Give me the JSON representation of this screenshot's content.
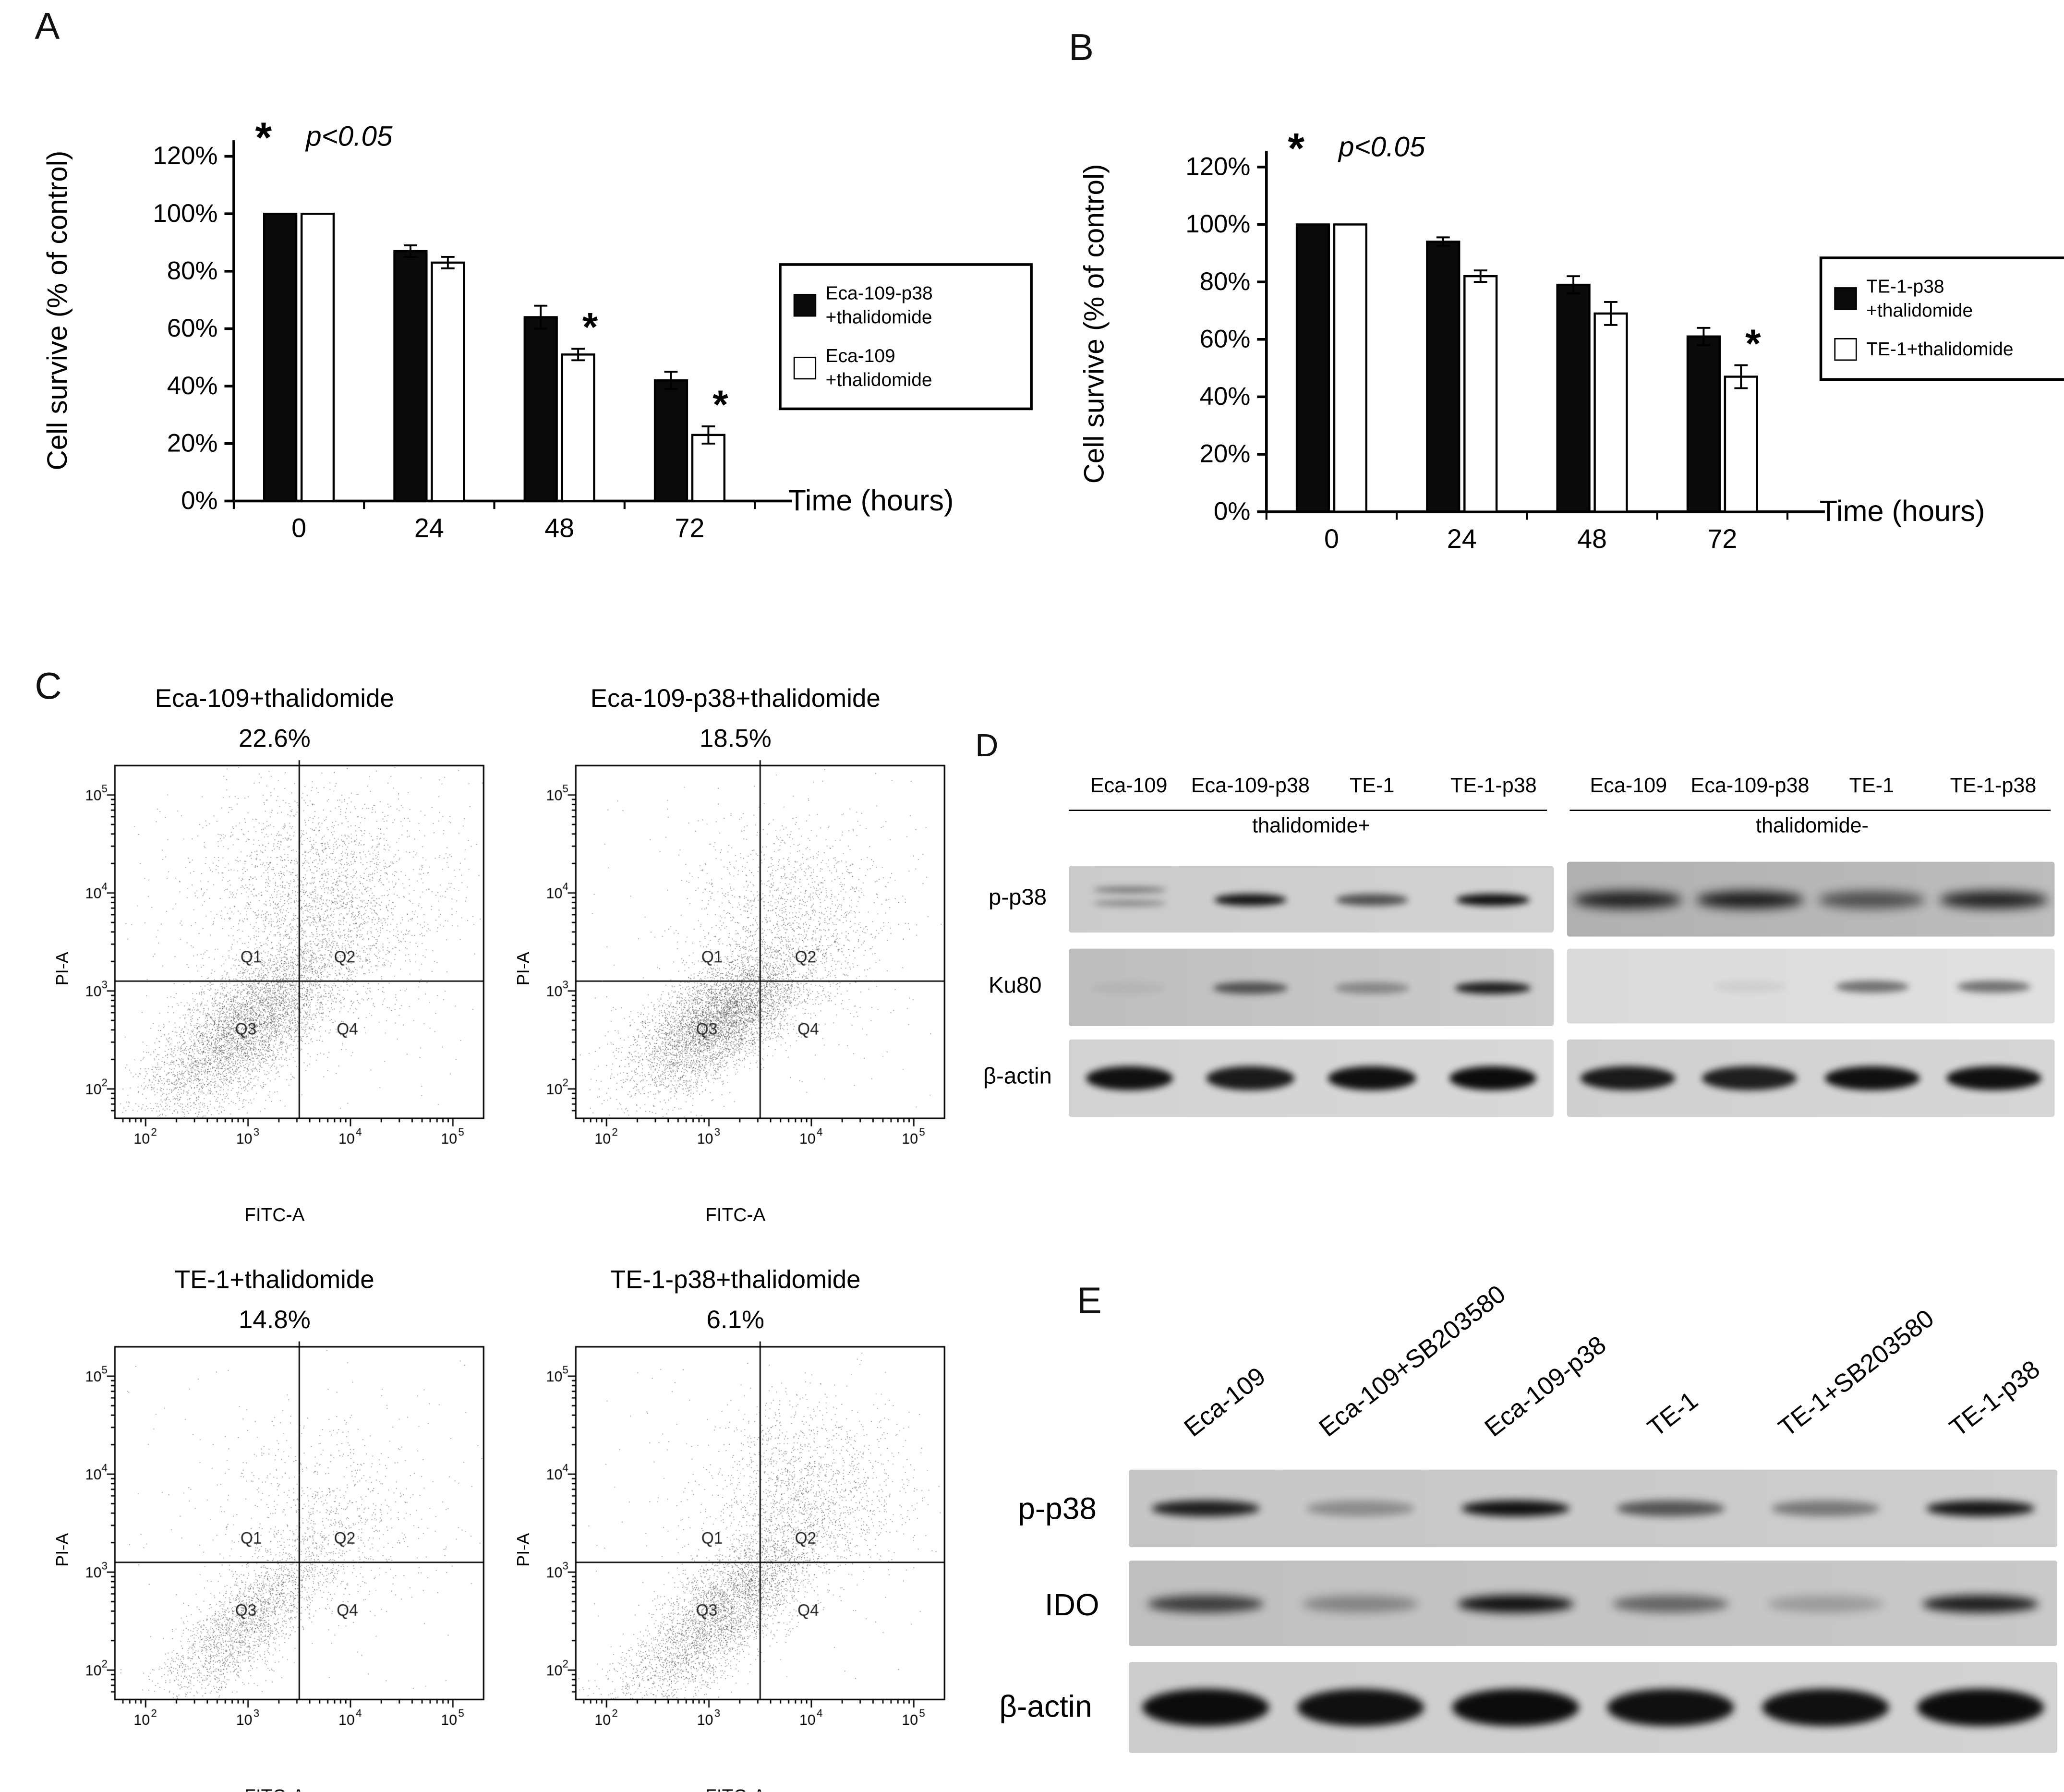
{
  "panels": {
    "a": "A",
    "b": "B",
    "c": "C",
    "d": "D",
    "e": "E"
  },
  "chart_data": [
    {
      "id": "A",
      "type": "bar",
      "title": "",
      "ylabel": "Cell survive (% of control)",
      "xlabel": "Time (hours)",
      "categories": [
        "0",
        "24",
        "48",
        "72"
      ],
      "yticks": [
        "0%",
        "20%",
        "40%",
        "60%",
        "80%",
        "100%",
        "120%"
      ],
      "ylim": [
        0,
        120
      ],
      "grid": false,
      "legend_position": "right",
      "sig_marker": "*",
      "sig_note": "p<0.05",
      "series": [
        {
          "name": "Eca-109-p38 +thalidomide",
          "lines": [
            "Eca-109-p38",
            "+thalidomide"
          ],
          "fill": "black",
          "values": [
            100,
            87,
            64,
            42
          ],
          "errors": [
            0,
            2,
            4,
            3
          ],
          "sig": [
            false,
            false,
            false,
            false
          ]
        },
        {
          "name": "Eca-109 +thalidomide",
          "lines": [
            "Eca-109",
            "+thalidomide"
          ],
          "fill": "white",
          "values": [
            100,
            83,
            51,
            23
          ],
          "errors": [
            0,
            2,
            2,
            3
          ],
          "sig": [
            false,
            false,
            true,
            true
          ]
        }
      ]
    },
    {
      "id": "B",
      "type": "bar",
      "title": "",
      "ylabel": "Cell survive (% of control)",
      "xlabel": "Time (hours)",
      "categories": [
        "0",
        "24",
        "48",
        "72"
      ],
      "yticks": [
        "0%",
        "20%",
        "40%",
        "60%",
        "80%",
        "100%",
        "120%"
      ],
      "ylim": [
        0,
        120
      ],
      "grid": false,
      "legend_position": "right",
      "sig_marker": "*",
      "sig_note": "p<0.05",
      "series": [
        {
          "name": "TE-1-p38 +thalidomide",
          "lines": [
            "TE-1-p38",
            "+thalidomide"
          ],
          "fill": "black",
          "values": [
            100,
            94,
            79,
            61
          ],
          "errors": [
            0,
            1.5,
            3,
            3
          ],
          "sig": [
            false,
            false,
            false,
            false
          ]
        },
        {
          "name": "TE-1+thalidomide",
          "lines": [
            "TE-1+thalidomide"
          ],
          "fill": "white",
          "values": [
            100,
            82,
            69,
            47
          ],
          "errors": [
            0,
            2,
            4,
            4
          ],
          "sig": [
            false,
            false,
            false,
            true
          ]
        }
      ]
    }
  ],
  "flow": {
    "xlabel": "FITC-A",
    "ylabel": "PI-A",
    "tick_base": "10",
    "tick_exponents": [
      "2",
      "3",
      "4",
      "5"
    ],
    "quadrants": [
      "Q1",
      "Q2",
      "Q3",
      "Q4"
    ],
    "plots": [
      {
        "title": "Eca-109+thalidomide",
        "percent": "22.6%"
      },
      {
        "title": "Eca-109-p38+thalidomide",
        "percent": "18.5%"
      },
      {
        "title": "TE-1+thalidomide",
        "percent": "14.8%"
      },
      {
        "title": "TE-1-p38+thalidomide",
        "percent": "6.1%"
      }
    ]
  },
  "blotD": {
    "group_plus": "thalidomide+",
    "group_minus": "thalidomide-",
    "lanes": [
      "Eca-109",
      "Eca-109-p38",
      "TE-1",
      "TE-1-p38"
    ],
    "rows": [
      "p-p38",
      "Ku80",
      "β-actin"
    ],
    "band_intensity": {
      "p_p38_plus": [
        0.5,
        0.92,
        0.62,
        0.95
      ],
      "p_p38_minus": [
        0.85,
        0.88,
        0.6,
        0.85
      ],
      "ku80_plus": [
        0.05,
        0.6,
        0.32,
        0.88
      ],
      "ku80_minus": [
        0.02,
        0.06,
        0.5,
        0.5
      ],
      "actin_plus": [
        0.95,
        0.9,
        0.95,
        0.97
      ],
      "actin_minus": [
        0.9,
        0.88,
        0.95,
        0.95
      ]
    }
  },
  "blotE": {
    "lanes": [
      "Eca-109",
      "Eca-109+SB203580",
      "Eca-109-p38",
      "TE-1",
      "TE-1+SB203580",
      "TE-1-p38"
    ],
    "rows": [
      "p-p38",
      "IDO",
      "β-actin"
    ],
    "band_intensity": {
      "p_p38": [
        0.88,
        0.3,
        0.95,
        0.6,
        0.42,
        0.92
      ],
      "ido": [
        0.7,
        0.32,
        0.95,
        0.5,
        0.22,
        0.88
      ],
      "actin": [
        0.97,
        0.95,
        0.97,
        0.95,
        0.95,
        0.97
      ]
    }
  }
}
